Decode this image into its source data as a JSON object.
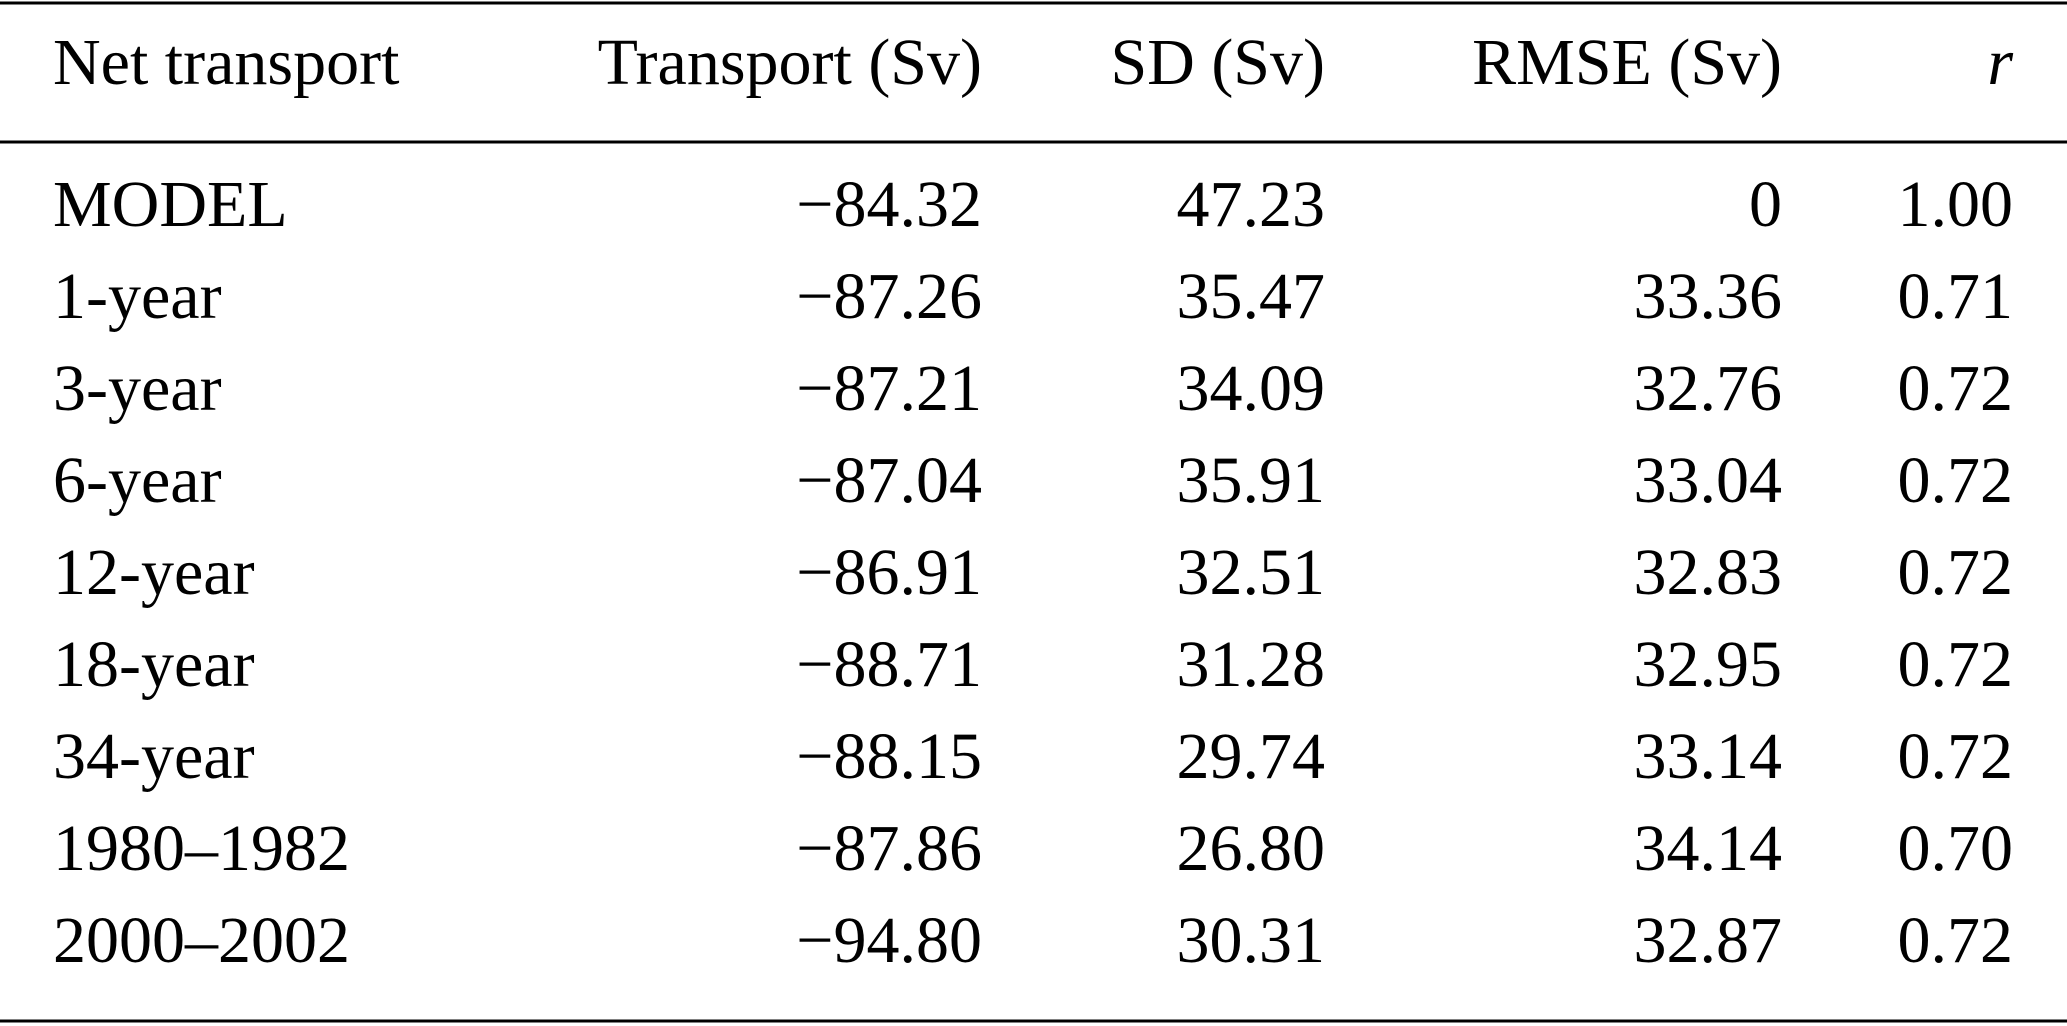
{
  "table": {
    "columns": [
      "Net transport",
      "Transport (Sv)",
      "SD (Sv)",
      "RMSE (Sv)",
      "r"
    ],
    "rows": [
      [
        "MODEL",
        "−84.32",
        "47.23",
        "0",
        "1.00"
      ],
      [
        "1-year",
        "−87.26",
        "35.47",
        "33.36",
        "0.71"
      ],
      [
        "3-year",
        "−87.21",
        "34.09",
        "32.76",
        "0.72"
      ],
      [
        "6-year",
        "−87.04",
        "35.91",
        "33.04",
        "0.72"
      ],
      [
        "12-year",
        "−86.91",
        "32.51",
        "32.83",
        "0.72"
      ],
      [
        "18-year",
        "−88.71",
        "31.28",
        "32.95",
        "0.72"
      ],
      [
        "34-year",
        "−88.15",
        "29.74",
        "33.14",
        "0.72"
      ],
      [
        "1980–1982",
        "−87.86",
        "26.80",
        "34.14",
        "0.70"
      ],
      [
        "2000–2002",
        "−94.80",
        "30.31",
        "32.87",
        "0.72"
      ]
    ]
  }
}
